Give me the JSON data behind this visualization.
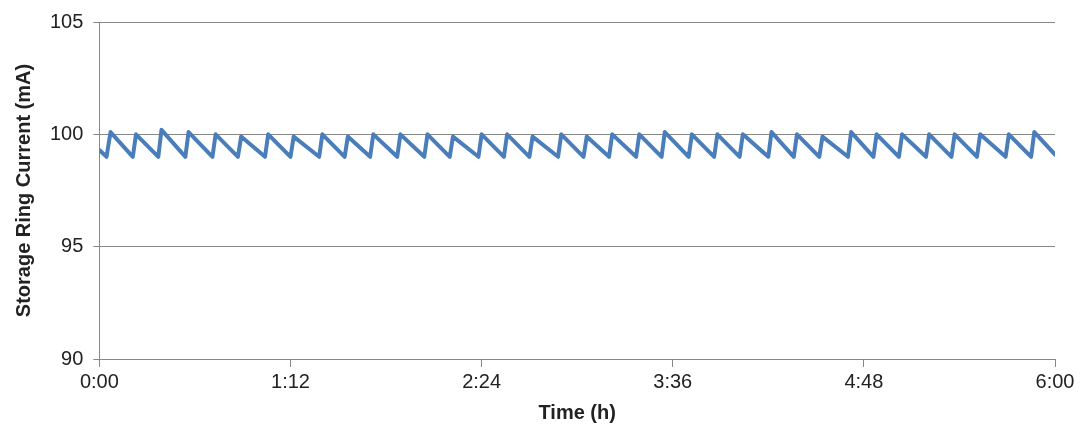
{
  "chart_data": {
    "type": "line",
    "xlabel": "Time (h)",
    "ylabel": "Storage Ring Current (mA)",
    "xlim": [
      0,
      6
    ],
    "ylim": [
      90,
      105
    ],
    "xticks": [
      {
        "value": 0,
        "label": "0:00"
      },
      {
        "value": 1.2,
        "label": "1:12"
      },
      {
        "value": 2.4,
        "label": "2:24"
      },
      {
        "value": 3.6,
        "label": "3:36"
      },
      {
        "value": 4.8,
        "label": "4:48"
      },
      {
        "value": 6,
        "label": "6:00"
      }
    ],
    "yticks": [
      90,
      95,
      100,
      105
    ],
    "grid": "y",
    "legend": false,
    "marker": "none",
    "line_style": "solid",
    "series": [
      {
        "color": "#4a7ebb",
        "x": [
          0,
          0.045,
          0.07,
          0.21,
          0.23,
          0.37,
          0.39,
          0.54,
          0.56,
          0.71,
          0.73,
          0.87,
          0.89,
          1.04,
          1.06,
          1.2,
          1.22,
          1.38,
          1.4,
          1.54,
          1.56,
          1.7,
          1.72,
          1.87,
          1.89,
          2.04,
          2.06,
          2.2,
          2.22,
          2.38,
          2.4,
          2.54,
          2.56,
          2.7,
          2.72,
          2.88,
          2.9,
          3.04,
          3.06,
          3.2,
          3.22,
          3.37,
          3.39,
          3.53,
          3.55,
          3.7,
          3.72,
          3.86,
          3.88,
          4.02,
          4.04,
          4.2,
          4.22,
          4.36,
          4.38,
          4.52,
          4.54,
          4.7,
          4.72,
          4.86,
          4.88,
          5.02,
          5.04,
          5.19,
          5.21,
          5.35,
          5.37,
          5.51,
          5.53,
          5.69,
          5.71,
          5.85,
          5.87,
          6
        ],
        "values": [
          99.3,
          99.0,
          100.1,
          99.0,
          100.0,
          99.0,
          100.2,
          99.0,
          100.1,
          99.0,
          100.0,
          99.0,
          99.9,
          99.0,
          100.0,
          99.0,
          99.9,
          99.0,
          100.0,
          99.0,
          99.9,
          99.0,
          100.0,
          99.0,
          100.0,
          99.0,
          100.0,
          99.0,
          99.9,
          99.0,
          100.0,
          99.0,
          100.0,
          99.0,
          99.9,
          99.0,
          100.0,
          99.0,
          99.9,
          99.0,
          100.0,
          99.0,
          100.0,
          99.0,
          100.1,
          99.0,
          100.0,
          99.0,
          100.0,
          99.0,
          100.0,
          99.0,
          100.1,
          99.0,
          100.0,
          99.0,
          99.9,
          99.0,
          100.1,
          99.0,
          100.0,
          99.0,
          100.0,
          99.0,
          100.0,
          99.0,
          100.0,
          99.0,
          100.0,
          99.0,
          100.0,
          99.0,
          100.1,
          99.1
        ]
      }
    ]
  }
}
